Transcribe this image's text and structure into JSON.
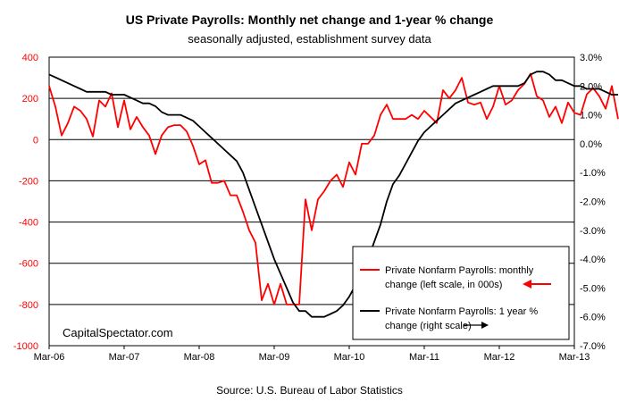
{
  "chart_data": {
    "type": "line",
    "title": "US Private Payrolls: Monthly net change and 1-year %  change",
    "subtitle": "seasonally adjusted, establishment survey data",
    "source": "Source: U.S. Bureau of Labor Statistics",
    "watermark": "CapitalSpectator.com",
    "x_tick_labels": [
      "Mar-06",
      "Mar-07",
      "Mar-08",
      "Mar-09",
      "Mar-10",
      "Mar-11",
      "Mar-12",
      "Mar-13"
    ],
    "left_axis": {
      "ylim": [
        -1000,
        400
      ],
      "ticks": [
        400,
        200,
        0,
        -200,
        -400,
        -600,
        -800,
        -1000
      ],
      "tick_labels": [
        "400",
        "200",
        "0",
        "-200",
        "-400",
        "-600",
        "-800",
        "-1000"
      ],
      "color": "#ff0000"
    },
    "right_axis": {
      "ylim": [
        -7,
        3
      ],
      "ticks": [
        3,
        2,
        1,
        0,
        -1,
        -2,
        -3,
        -4,
        -5,
        -6,
        -7
      ],
      "tick_labels": [
        "3.0%",
        "2.0%",
        "1.0%",
        "0.0%",
        "-1.0%",
        "-2.0%",
        "-3.0%",
        "-4.0%",
        "-5.0%",
        "-6.0%",
        "-7.0%"
      ],
      "color": "#000000"
    },
    "grid": "horizontal",
    "legend_position": "bottom-right",
    "legend": [
      {
        "label_line1": "Private Nonfarm Payrolls: monthly",
        "label_line2": "change (left scale, in 000s)",
        "color": "#ff0000",
        "arrow": "left"
      },
      {
        "label_line1": "Private Nonfarm Payrolls:  1 year %",
        "label_line2": "change (right scale)",
        "color": "#000000",
        "arrow": "right"
      }
    ],
    "series": [
      {
        "name": "Private Nonfarm Payrolls: monthly change (left scale, in 000s)",
        "axis": "left",
        "color": "#ff0000",
        "start": "Mar-06",
        "values": [
          260,
          160,
          20,
          80,
          160,
          140,
          100,
          15,
          190,
          160,
          225,
          60,
          190,
          50,
          110,
          60,
          20,
          -70,
          20,
          60,
          70,
          70,
          40,
          -30,
          -120,
          -100,
          -210,
          -210,
          -200,
          -270,
          -270,
          -350,
          -440,
          -500,
          -780,
          -700,
          -800,
          -700,
          -800,
          -800,
          -800,
          -290,
          -440,
          -290,
          -250,
          -200,
          -170,
          -230,
          -110,
          -170,
          -20,
          -20,
          20,
          120,
          170,
          100,
          100,
          100,
          120,
          100,
          140,
          110,
          80,
          240,
          200,
          240,
          300,
          180,
          170,
          180,
          100,
          160,
          260,
          170,
          190,
          240,
          270,
          320,
          210,
          190,
          110,
          160,
          80,
          180,
          130,
          120,
          220,
          250,
          210,
          150,
          260,
          100
        ]
      },
      {
        "name": "Private Nonfarm Payrolls:  1 year % change (right scale)",
        "axis": "right",
        "color": "#000000",
        "start": "Mar-06",
        "values": [
          2.4,
          2.3,
          2.2,
          2.1,
          2.0,
          1.9,
          1.8,
          1.8,
          1.8,
          1.8,
          1.7,
          1.7,
          1.7,
          1.6,
          1.5,
          1.4,
          1.4,
          1.3,
          1.1,
          1.0,
          1.0,
          1.0,
          0.9,
          0.8,
          0.6,
          0.4,
          0.2,
          0.0,
          -0.2,
          -0.4,
          -0.6,
          -1.0,
          -1.6,
          -2.2,
          -2.8,
          -3.4,
          -4.0,
          -4.5,
          -5.0,
          -5.5,
          -5.8,
          -5.8,
          -6.0,
          -6.0,
          -6.0,
          -5.9,
          -5.8,
          -5.6,
          -5.3,
          -4.9,
          -4.5,
          -4.0,
          -3.4,
          -2.8,
          -2.0,
          -1.4,
          -1.1,
          -0.7,
          -0.3,
          0.1,
          0.4,
          0.6,
          0.8,
          1.0,
          1.2,
          1.4,
          1.5,
          1.6,
          1.7,
          1.8,
          1.9,
          2.0,
          2.0,
          2.0,
          2.0,
          2.0,
          2.1,
          2.4,
          2.5,
          2.5,
          2.4,
          2.2,
          2.2,
          2.1,
          2.0,
          2.0,
          1.9,
          1.9,
          1.9,
          1.8,
          1.7,
          1.7
        ]
      }
    ]
  }
}
